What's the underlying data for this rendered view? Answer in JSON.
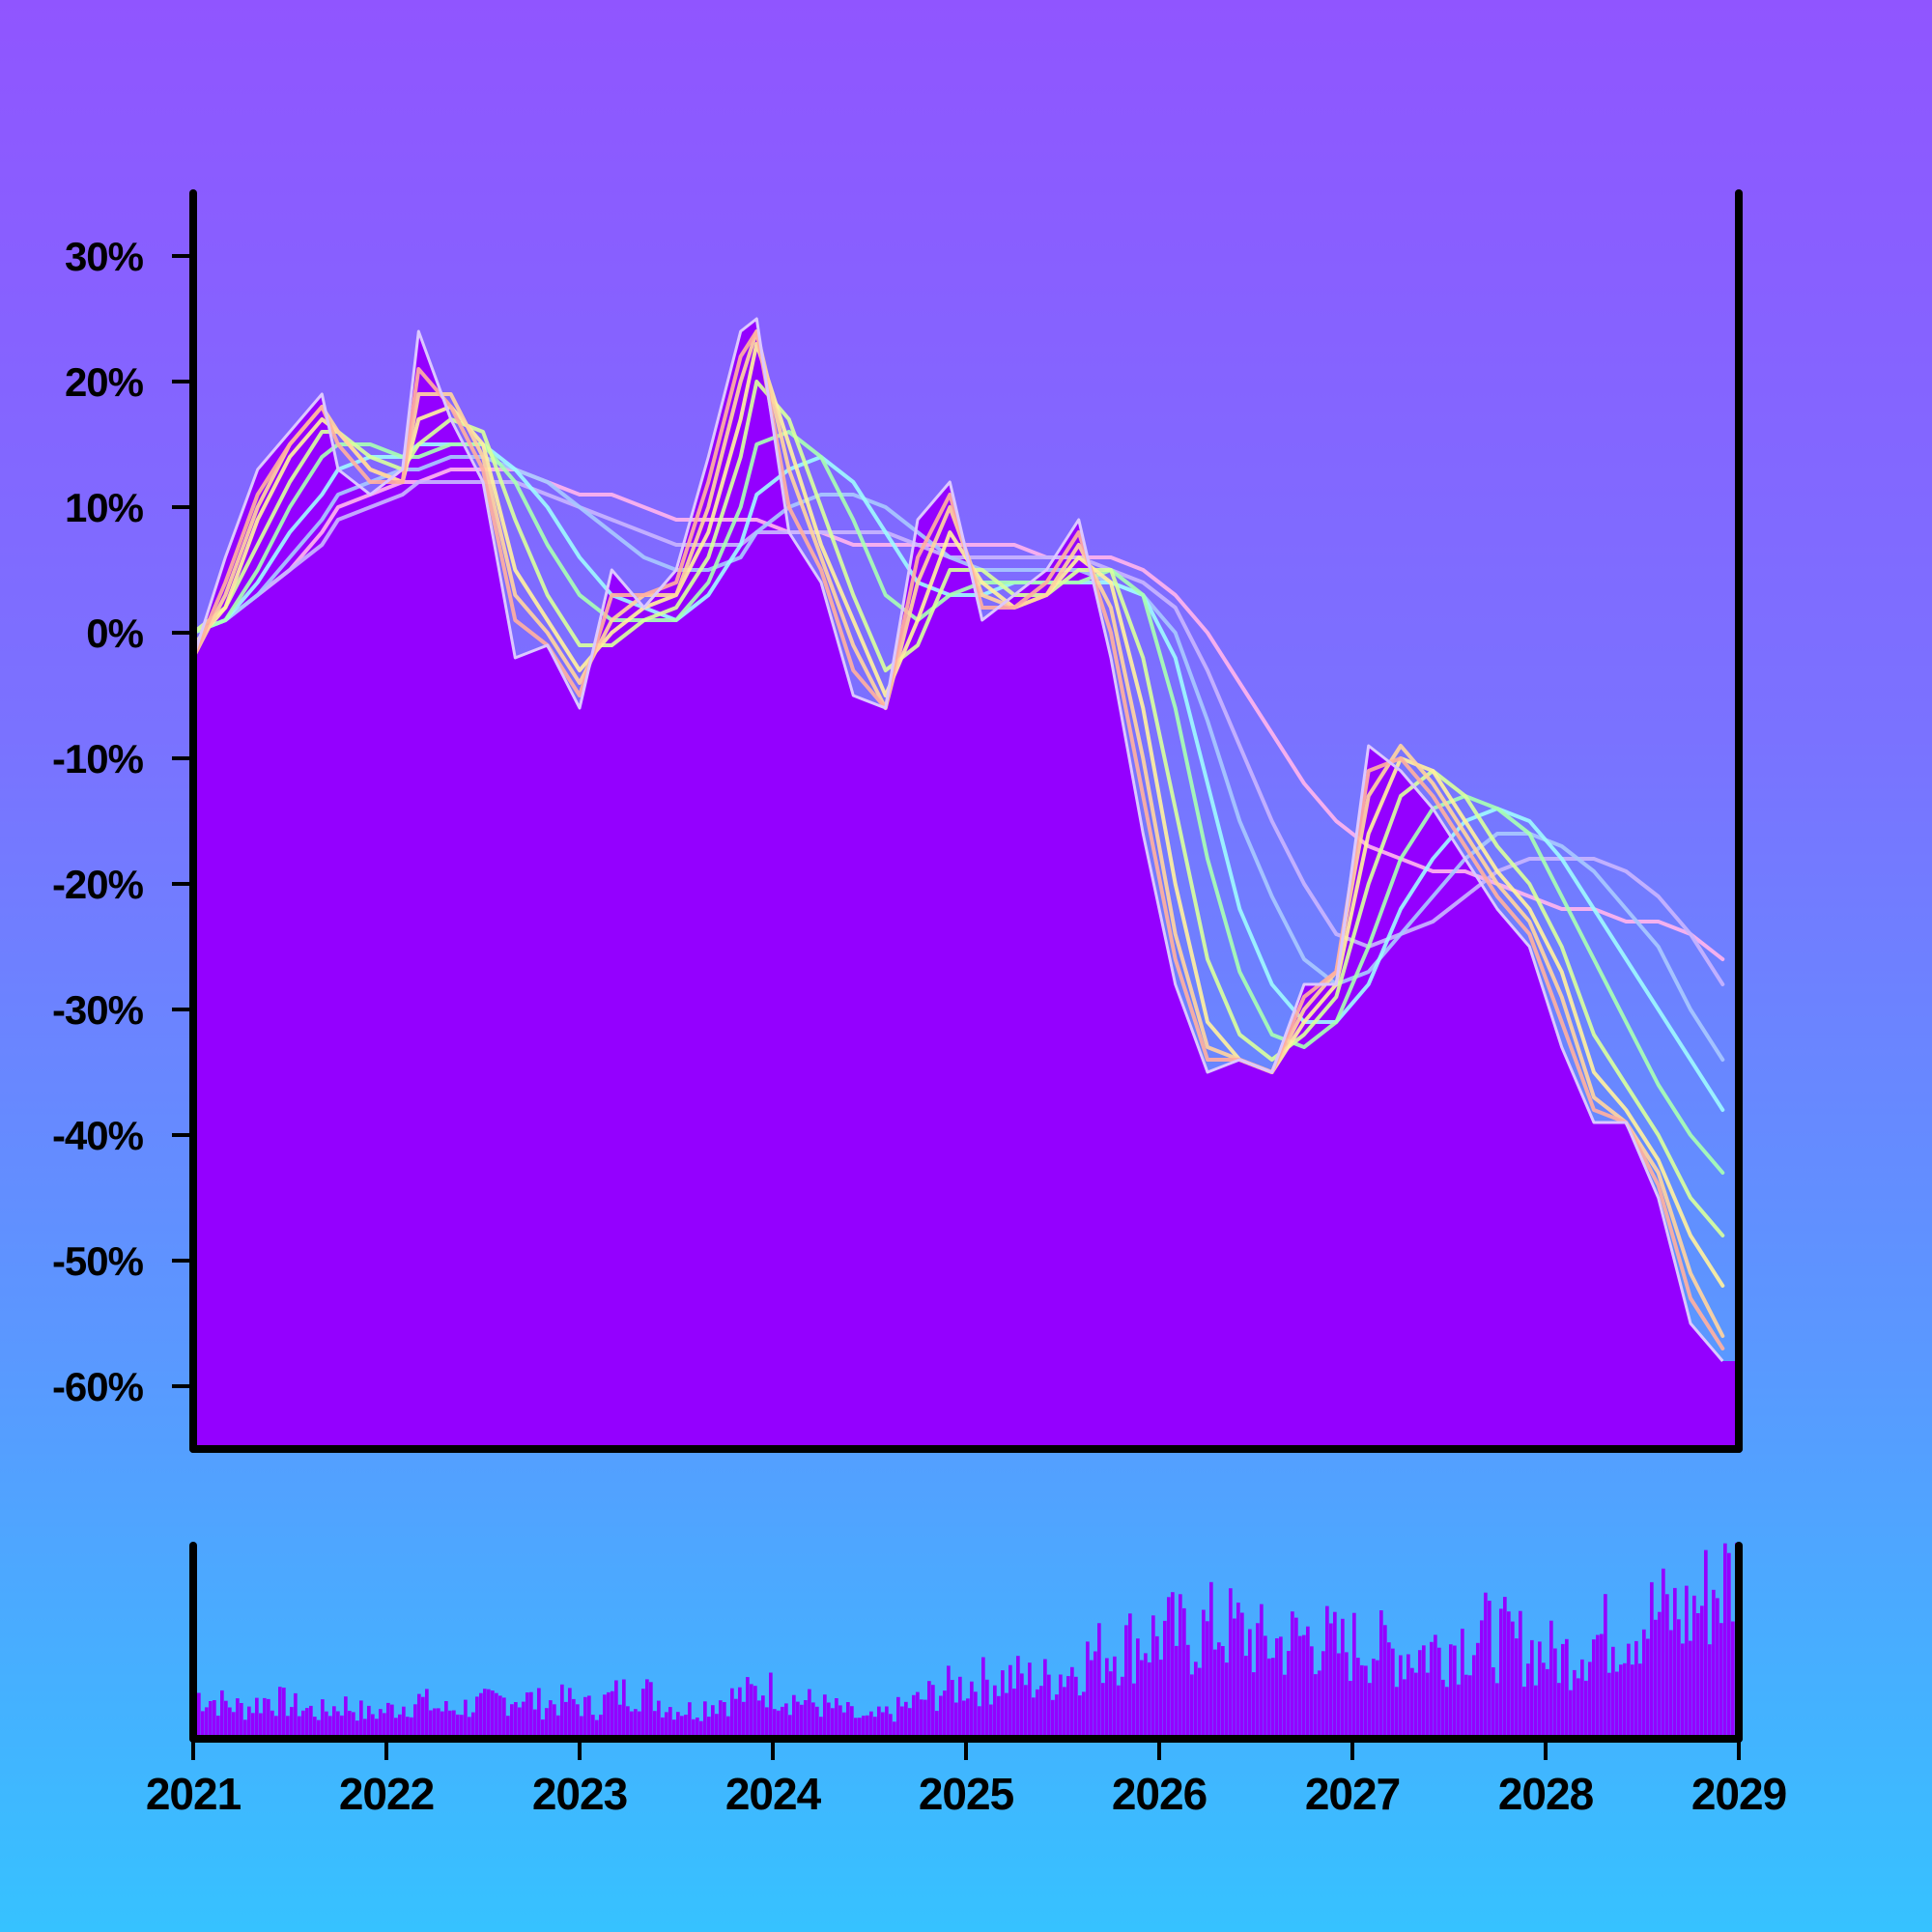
{
  "chart_data": {
    "type": "area",
    "title": "",
    "xlabel": "",
    "ylabel": "",
    "x_range": [
      "2021",
      "2029"
    ],
    "x_tick_labels": [
      "2021",
      "2022",
      "2023",
      "2024",
      "2025",
      "2026",
      "2027",
      "2028",
      "2029"
    ],
    "y_tick_values": [
      30,
      20,
      10,
      0,
      -10,
      -20,
      -30,
      -40,
      -50,
      -60
    ],
    "y_tick_labels": [
      "30%",
      "20%",
      "10%",
      "0%",
      "-10%",
      "-20%",
      "-30%",
      "-40%",
      "-50%",
      "-60%"
    ],
    "ylim": [
      -65,
      35
    ],
    "grid": false,
    "legend": "none",
    "colors": {
      "area_fill": "#9400ff",
      "axis": "#000000",
      "series": [
        "#dcc8ff",
        "#ffb0a0",
        "#ffd4a0",
        "#fff0a0",
        "#d8ff9e",
        "#a8ffb4",
        "#9ef8ff",
        "#a8c8ff",
        "#c8b4ff",
        "#ffb4ee"
      ]
    },
    "price": {
      "x": [
        "2021-01",
        "2021-03",
        "2021-05",
        "2021-07",
        "2021-09",
        "2021-10",
        "2021-12",
        "2022-02",
        "2022-03",
        "2022-05",
        "2022-07",
        "2022-09",
        "2022-11",
        "2023-01",
        "2023-03",
        "2023-05",
        "2023-07",
        "2023-09",
        "2023-11",
        "2023-12",
        "2024-02",
        "2024-04",
        "2024-06",
        "2024-08",
        "2024-10",
        "2024-12",
        "2025-02",
        "2025-04",
        "2025-06",
        "2025-08",
        "2025-10",
        "2025-12",
        "2026-02",
        "2026-04",
        "2026-06",
        "2026-08",
        "2026-10",
        "2026-12",
        "2027-02",
        "2027-04",
        "2027-06",
        "2027-08",
        "2027-10",
        "2027-12",
        "2028-02",
        "2028-04",
        "2028-06",
        "2028-08",
        "2028-10",
        "2028-12"
      ],
      "y": [
        -2,
        6,
        13,
        16,
        19,
        13,
        11,
        13,
        24,
        17,
        12,
        -2,
        -1,
        -6,
        5,
        2,
        5,
        14,
        24,
        25,
        8,
        4,
        -5,
        -6,
        9,
        12,
        1,
        3,
        5,
        9,
        -2,
        -16,
        -28,
        -35,
        -34,
        -35,
        -28,
        -28,
        -9,
        -11,
        -14,
        -18,
        -22,
        -25,
        -33,
        -39,
        -39,
        -45,
        -55,
        -58
      ]
    },
    "series": [
      {
        "window": 3,
        "y": [
          -2,
          4,
          11,
          15,
          18,
          15,
          12,
          12,
          21,
          18,
          13,
          1,
          -1,
          -5,
          3,
          3,
          4,
          12,
          22,
          24,
          10,
          5,
          -3,
          -6,
          6,
          11,
          2,
          2,
          4,
          8,
          0,
          -13,
          -26,
          -34,
          -34,
          -35,
          -29,
          -27,
          -11,
          -10,
          -13,
          -17,
          -21,
          -24,
          -31,
          -38,
          -39,
          -44,
          -53,
          -57
        ]
      },
      {
        "window": 5,
        "y": [
          -2,
          3,
          10,
          15,
          18,
          16,
          13,
          12,
          19,
          19,
          14,
          3,
          0,
          -4,
          1,
          3,
          3,
          10,
          20,
          24,
          13,
          6,
          -1,
          -6,
          4,
          10,
          3,
          2,
          3,
          7,
          2,
          -10,
          -24,
          -33,
          -34,
          -35,
          -30,
          -27,
          -13,
          -9,
          -12,
          -16,
          -20,
          -23,
          -29,
          -37,
          -39,
          -43,
          -51,
          -56
        ]
      },
      {
        "window": 8,
        "y": [
          -1,
          2,
          9,
          14,
          17,
          16,
          13,
          12,
          17,
          18,
          15,
          5,
          1,
          -3,
          0,
          2,
          3,
          8,
          17,
          23,
          15,
          7,
          1,
          -5,
          1,
          8,
          4,
          2,
          3,
          6,
          4,
          -6,
          -20,
          -31,
          -34,
          -35,
          -31,
          -28,
          -16,
          -10,
          -11,
          -15,
          -19,
          -22,
          -27,
          -35,
          -38,
          -42,
          -48,
          -52
        ]
      },
      {
        "window": 13,
        "y": [
          0,
          2,
          7,
          12,
          16,
          16,
          14,
          13,
          15,
          17,
          16,
          9,
          3,
          -1,
          -1,
          1,
          2,
          6,
          14,
          20,
          17,
          10,
          3,
          -3,
          -1,
          5,
          5,
          3,
          3,
          5,
          5,
          -2,
          -14,
          -26,
          -32,
          -34,
          -32,
          -29,
          -20,
          -13,
          -11,
          -13,
          -17,
          -20,
          -25,
          -32,
          -36,
          -40,
          -45,
          -48
        ]
      },
      {
        "window": 21,
        "y": [
          0,
          1,
          5,
          10,
          14,
          15,
          15,
          14,
          14,
          15,
          15,
          12,
          7,
          3,
          1,
          1,
          1,
          4,
          10,
          15,
          16,
          14,
          9,
          3,
          1,
          3,
          4,
          4,
          4,
          4,
          5,
          3,
          -6,
          -18,
          -27,
          -32,
          -33,
          -31,
          -25,
          -18,
          -14,
          -13,
          -14,
          -16,
          -21,
          -26,
          -31,
          -36,
          -40,
          -43
        ]
      },
      {
        "window": 34,
        "y": [
          0,
          1,
          4,
          8,
          11,
          13,
          14,
          14,
          15,
          15,
          15,
          13,
          10,
          6,
          3,
          2,
          1,
          3,
          7,
          11,
          13,
          14,
          12,
          8,
          4,
          3,
          3,
          4,
          4,
          4,
          4,
          3,
          -2,
          -12,
          -22,
          -28,
          -31,
          -31,
          -28,
          -22,
          -18,
          -15,
          -14,
          -15,
          -18,
          -22,
          -26,
          -30,
          -34,
          -38
        ]
      },
      {
        "window": 55,
        "y": [
          0,
          1,
          3,
          6,
          9,
          11,
          12,
          13,
          13,
          14,
          14,
          13,
          12,
          10,
          8,
          6,
          5,
          5,
          6,
          8,
          10,
          11,
          11,
          10,
          8,
          6,
          5,
          5,
          5,
          5,
          4,
          3,
          0,
          -7,
          -15,
          -21,
          -26,
          -28,
          -27,
          -24,
          -21,
          -18,
          -16,
          -16,
          -17,
          -19,
          -22,
          -25,
          -30,
          -34
        ]
      },
      {
        "window": 89,
        "y": [
          0,
          1,
          3,
          5,
          7,
          9,
          10,
          11,
          12,
          12,
          12,
          12,
          11,
          10,
          9,
          8,
          7,
          7,
          7,
          8,
          8,
          8,
          8,
          8,
          7,
          6,
          6,
          6,
          6,
          6,
          5,
          4,
          2,
          -3,
          -9,
          -15,
          -20,
          -24,
          -25,
          -24,
          -23,
          -21,
          -19,
          -18,
          -18,
          -18,
          -19,
          -21,
          -24,
          -28
        ]
      },
      {
        "window": 144,
        "y": [
          0,
          1,
          3,
          5,
          8,
          10,
          11,
          12,
          12,
          13,
          13,
          13,
          12,
          11,
          11,
          10,
          9,
          9,
          9,
          9,
          8,
          8,
          7,
          7,
          7,
          7,
          7,
          7,
          6,
          6,
          6,
          5,
          3,
          0,
          -4,
          -8,
          -12,
          -15,
          -17,
          -18,
          -19,
          -19,
          -20,
          -21,
          -22,
          -22,
          -23,
          -23,
          -24,
          -26
        ]
      }
    ],
    "volume": {
      "y": [
        22,
        18,
        15,
        20,
        16,
        13,
        17,
        12,
        15,
        19,
        14,
        16,
        18,
        21,
        17,
        19,
        15,
        22,
        24,
        16,
        14,
        19,
        21,
        25,
        20,
        17,
        14,
        9,
        13,
        18,
        24,
        27,
        29,
        30,
        28,
        33,
        40,
        45,
        48,
        52,
        50,
        55,
        53,
        46,
        48,
        51,
        44,
        47,
        43,
        42,
        45,
        49,
        51,
        47,
        43,
        40,
        48,
        52,
        57,
        62,
        60,
        73,
        80
      ]
    }
  }
}
